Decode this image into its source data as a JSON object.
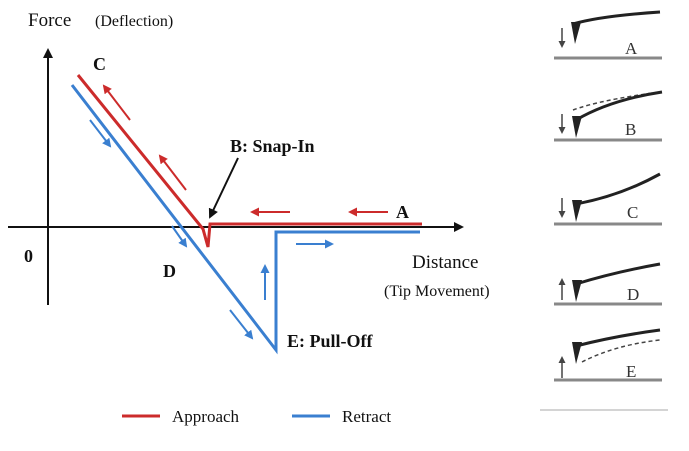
{
  "figure": {
    "y_axis": {
      "label": "Force",
      "sublabel": "(Deflection)"
    },
    "x_axis": {
      "label": "Distance",
      "sublabel": "(Tip Movement)"
    },
    "origin_label": "0",
    "points": {
      "A": "A",
      "B": "B: Snap-In",
      "C": "C",
      "D": "D",
      "E": "E: Pull-Off"
    },
    "legend": [
      {
        "label": "Approach",
        "color": "#cc2b2b"
      },
      {
        "label": "Retract",
        "color": "#3a7fd0"
      }
    ],
    "colors": {
      "approach": "#cc2b2b",
      "retract": "#3a7fd0",
      "axis": "#111111",
      "surface": "#888888",
      "cantilever": "#222222"
    }
  },
  "panels": [
    {
      "label": "A",
      "motion": "down",
      "state": "free"
    },
    {
      "label": "B",
      "motion": "down",
      "state": "snap-in"
    },
    {
      "label": "C",
      "motion": "down",
      "state": "pressed"
    },
    {
      "label": "D",
      "motion": "up",
      "state": "relaxing"
    },
    {
      "label": "E",
      "motion": "up",
      "state": "pull-off"
    }
  ]
}
